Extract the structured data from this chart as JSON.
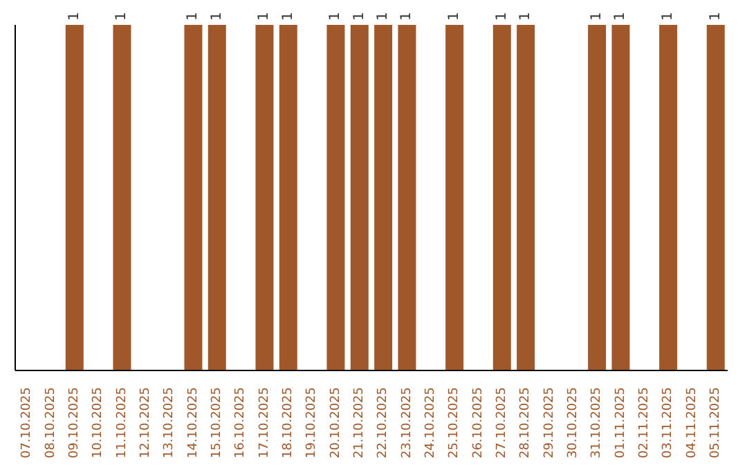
{
  "chart_data": {
    "type": "bar",
    "categories": [
      "07.10.2025",
      "08.10.2025",
      "09.10.2025",
      "10.10.2025",
      "11.10.2025",
      "12.10.2025",
      "13.10.2025",
      "14.10.2025",
      "15.10.2025",
      "16.10.2025",
      "17.10.2025",
      "18.10.2025",
      "19.10.2025",
      "20.10.2025",
      "21.10.2025",
      "22.10.2025",
      "23.10.2025",
      "24.10.2025",
      "25.10.2025",
      "26.10.2025",
      "27.10.2025",
      "28.10.2025",
      "29.10.2025",
      "30.10.2025",
      "31.10.2025",
      "01.11.2025",
      "02.11.2025",
      "03.11.2025",
      "04.11.2025",
      "05.11.2025"
    ],
    "values": [
      null,
      null,
      1,
      null,
      1,
      null,
      null,
      1,
      1,
      null,
      1,
      1,
      null,
      1,
      1,
      1,
      1,
      null,
      1,
      null,
      1,
      1,
      null,
      null,
      1,
      1,
      null,
      1,
      null,
      1
    ],
    "color": "#a0582a",
    "data_labels": true,
    "tick_labels": "x"
  }
}
